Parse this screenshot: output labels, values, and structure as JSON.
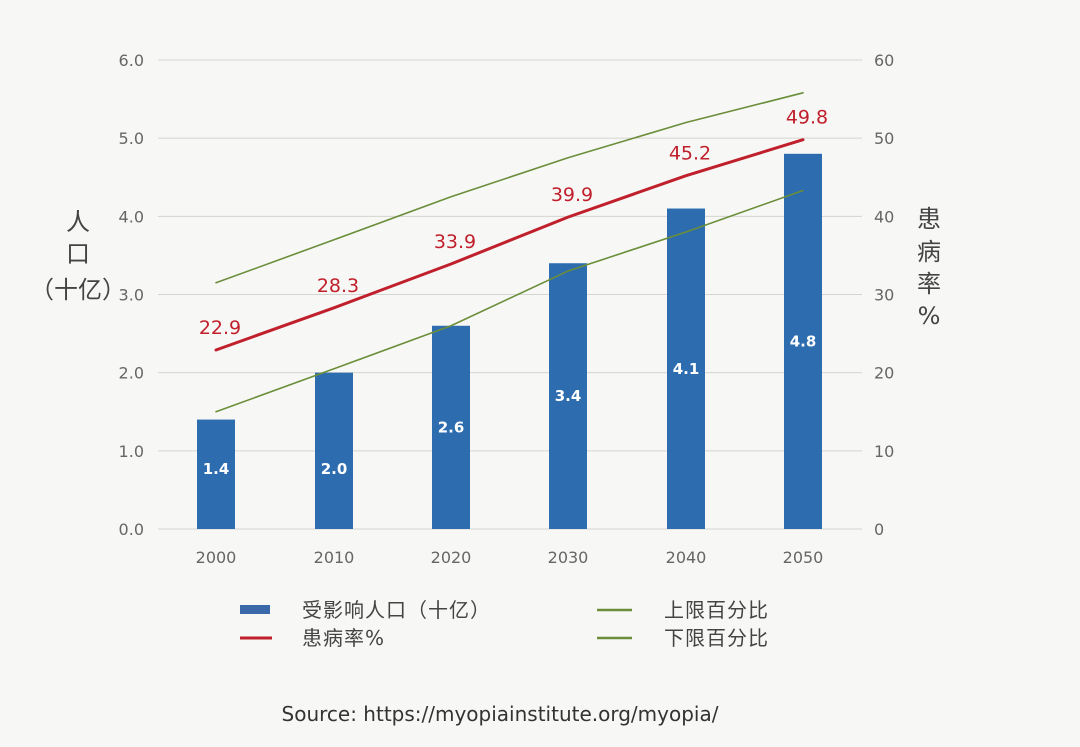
{
  "chart_data": {
    "type": "bar",
    "categories": [
      "2000",
      "2010",
      "2020",
      "2030",
      "2040",
      "2050"
    ],
    "series": [
      {
        "name": "受影响人口（十亿）",
        "type": "bar",
        "axis": "left",
        "color": "#2e6cb0",
        "values": [
          1.4,
          2.0,
          2.6,
          3.4,
          4.1,
          4.8
        ]
      },
      {
        "name": "患病率%",
        "type": "line",
        "axis": "right",
        "color": "#c0202c",
        "values": [
          22.9,
          28.3,
          33.9,
          39.9,
          45.2,
          49.8
        ]
      },
      {
        "name": "上限百分比",
        "type": "line",
        "axis": "right",
        "color": "#6b8e3a",
        "values": [
          31.5,
          37.0,
          42.5,
          47.5,
          52.0,
          55.8
        ]
      },
      {
        "name": "下限百分比",
        "type": "line",
        "axis": "right",
        "color": "#6b8e3a",
        "values": [
          15.0,
          20.5,
          26.0,
          33.0,
          38.0,
          43.3
        ]
      }
    ],
    "left_axis": {
      "label_lines": [
        "人",
        "口",
        "（十亿）"
      ],
      "ylim": [
        0,
        6
      ],
      "ticks": [
        "0.0",
        "1.0",
        "2.0",
        "3.0",
        "4.0",
        "5.0",
        "6.0"
      ]
    },
    "right_axis": {
      "label_lines": [
        "患",
        "病",
        "率",
        "%"
      ],
      "ylim": [
        0,
        60
      ],
      "ticks": [
        "0",
        "10",
        "20",
        "30",
        "40",
        "50",
        "60"
      ]
    },
    "grid": true,
    "legend_position": "bottom"
  },
  "source": "Source: https://myopiainstitute.org/myopia/"
}
